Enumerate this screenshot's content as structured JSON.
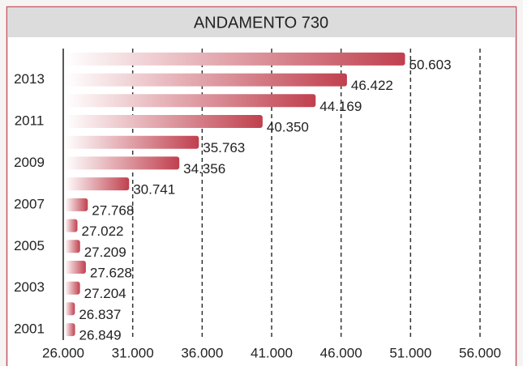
{
  "chart_data": {
    "type": "barh",
    "title": "ANDAMENTO 730",
    "categories": [
      "2001",
      null,
      "2003",
      null,
      "2005",
      null,
      "2007",
      null,
      "2009",
      null,
      "2011",
      null,
      "2013",
      null
    ],
    "values": [
      26849,
      26837,
      27204,
      27628,
      27209,
      27022,
      27768,
      30741,
      34356,
      35763,
      40350,
      44169,
      46422,
      50603
    ],
    "value_labels": [
      "26.849",
      "26.837",
      "27.204",
      "27.628",
      "27.209",
      "27.022",
      "27.768",
      "30.741",
      "34.356",
      "35.763",
      "40.350",
      "44.169",
      "46.422",
      "50.603"
    ],
    "color": "#c0404e",
    "xlim": [
      26000,
      56000
    ],
    "xticks": [
      {
        "value": 26000,
        "label": "26.000"
      },
      {
        "value": 31000,
        "label": "31.000"
      },
      {
        "value": 36000,
        "label": "36.000"
      },
      {
        "value": 41000,
        "label": "41.000"
      },
      {
        "value": 46000,
        "label": "46.000"
      },
      {
        "value": 51000,
        "label": "51.000"
      },
      {
        "value": 56000,
        "label": "56.000"
      }
    ],
    "grid": true
  }
}
